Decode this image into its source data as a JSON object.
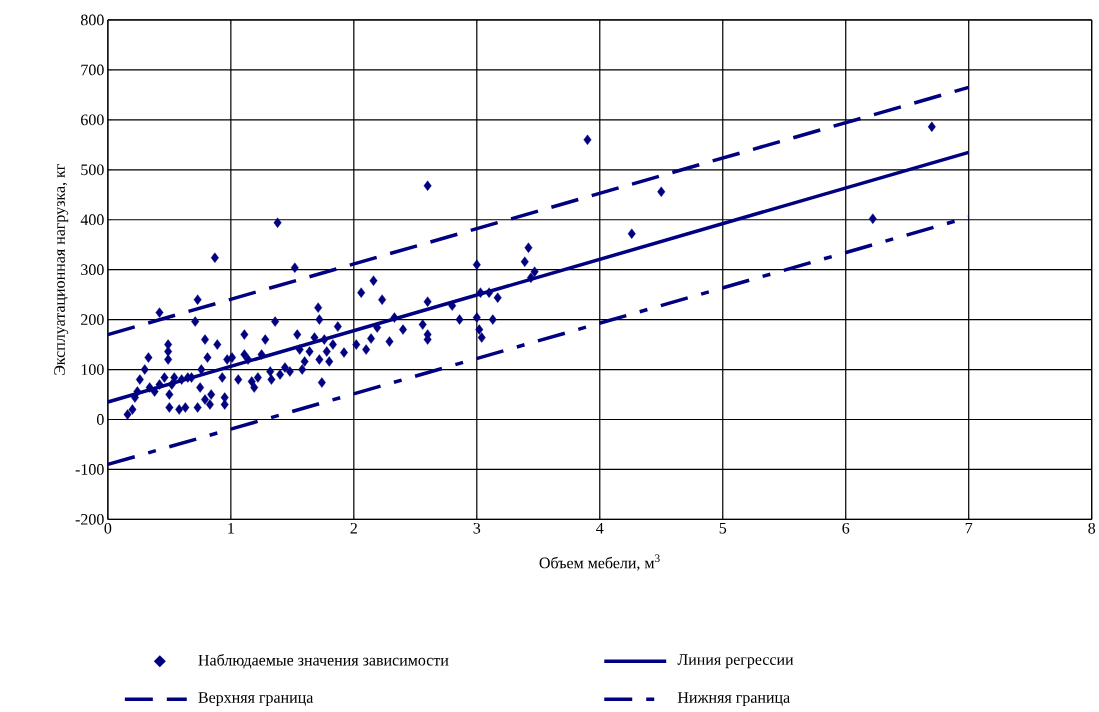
{
  "chart_data": {
    "type": "scatter",
    "xlabel": "Объем мебели, м$^{3}$",
    "ylabel": "Эксплуатационная нагрузка, кг",
    "xlim": [
      0,
      8
    ],
    "ylim": [
      -200,
      800
    ],
    "xticks": [
      0,
      1,
      2,
      3,
      4,
      5,
      6,
      7,
      8
    ],
    "yticks": [
      -200,
      -100,
      0,
      100,
      200,
      300,
      400,
      500,
      600,
      700,
      800
    ],
    "grid": true,
    "legend": "bottom",
    "series": [
      {
        "name": "Наблюдаемые значения зависимости",
        "color": "#000080",
        "marker": "diamond",
        "x": [
          0.16,
          0.2,
          0.22,
          0.24,
          0.26,
          0.3,
          0.33,
          0.34,
          0.38,
          0.42,
          0.42,
          0.46,
          0.49,
          0.49,
          0.49,
          0.5,
          0.5,
          0.52,
          0.54,
          0.58,
          0.6,
          0.63,
          0.65,
          0.68,
          0.71,
          0.73,
          0.73,
          0.75,
          0.76,
          0.79,
          0.79,
          0.81,
          0.83,
          0.84,
          0.87,
          0.89,
          0.93,
          0.95,
          0.95,
          0.97,
          1.01,
          1.06,
          1.11,
          1.11,
          1.14,
          1.17,
          1.19,
          1.22,
          1.25,
          1.28,
          1.32,
          1.33,
          1.36,
          1.38,
          1.4,
          1.44,
          1.48,
          1.52,
          1.54,
          1.56,
          1.58,
          1.6,
          1.64,
          1.68,
          1.71,
          1.72,
          1.72,
          1.74,
          1.76,
          1.78,
          1.8,
          1.83,
          1.87,
          1.92,
          2.02,
          2.06,
          2.1,
          2.14,
          2.16,
          2.19,
          2.23,
          2.29,
          2.33,
          2.4,
          2.56,
          2.6,
          2.6,
          2.6,
          2.6,
          2.8,
          2.86,
          3.0,
          3.0,
          3.02,
          3.04,
          3.03,
          3.1,
          3.13,
          3.17,
          3.39,
          3.42,
          3.44,
          3.47,
          3.9,
          4.26,
          4.5,
          6.22,
          6.7
        ],
        "values": [
          10,
          20,
          44,
          56,
          80,
          100,
          124,
          64,
          56,
          214,
          70,
          84,
          150,
          136,
          120,
          24,
          50,
          70,
          84,
          20,
          80,
          24,
          84,
          84,
          196,
          240,
          24,
          64,
          100,
          160,
          40,
          124,
          30,
          50,
          324,
          150,
          84,
          30,
          44,
          120,
          124,
          80,
          170,
          130,
          120,
          76,
          64,
          84,
          130,
          160,
          96,
          80,
          196,
          394,
          90,
          104,
          96,
          304,
          170,
          140,
          100,
          116,
          136,
          164,
          224,
          200,
          120,
          74,
          160,
          136,
          116,
          150,
          186,
          134,
          150,
          254,
          140,
          162,
          278,
          184,
          240,
          156,
          204,
          180,
          190,
          468,
          236,
          170,
          160,
          228,
          200,
          310,
          204,
          180,
          164,
          254,
          254,
          200,
          244,
          316,
          344,
          284,
          296,
          560,
          372,
          456,
          402,
          586
        ]
      },
      {
        "name": "Линия регрессии",
        "type": "line",
        "color": "#000080",
        "line_style": "solid",
        "x": [
          0,
          7
        ],
        "values": [
          35,
          535
        ]
      },
      {
        "name": "Верхняя граница",
        "type": "line",
        "color": "#000080",
        "line_style": "dashed",
        "x": [
          0,
          7
        ],
        "values": [
          170,
          665
        ]
      },
      {
        "name": "Нижняя граница",
        "type": "line",
        "color": "#000080",
        "line_style": "dashdot",
        "x": [
          0,
          7
        ],
        "values": [
          -90,
          405
        ]
      }
    ]
  }
}
